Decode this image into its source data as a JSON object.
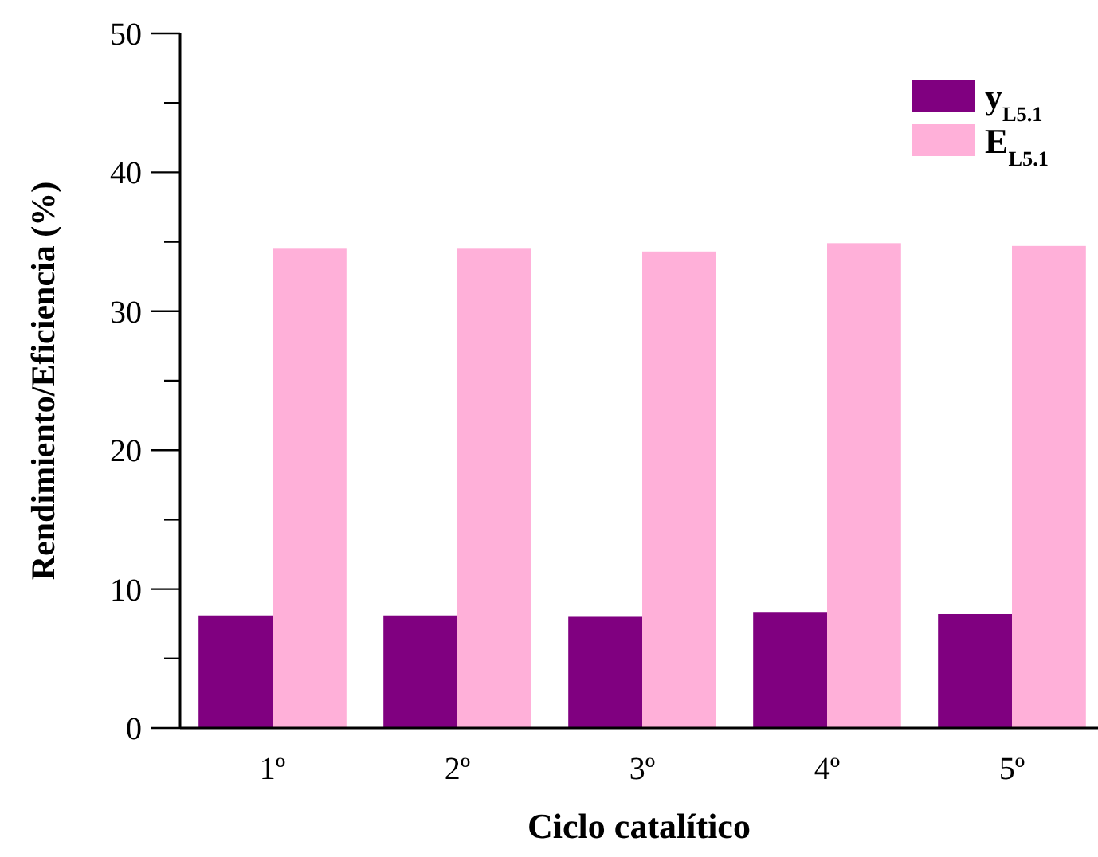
{
  "chart_data": {
    "type": "bar",
    "xlabel": "Ciclo catalítico",
    "ylabel": "Rendimiento/Eficiencia (%)",
    "categories": [
      "1º",
      "2º",
      "3º",
      "4º",
      "5º"
    ],
    "series": [
      {
        "name": "y$_{L5.1}$",
        "color": "#800080",
        "values": [
          8.1,
          8.1,
          8.0,
          8.3,
          8.2
        ]
      },
      {
        "name": "E$_{L5.1}$",
        "color": "#ffb0d9",
        "values": [
          34.5,
          34.5,
          34.3,
          34.9,
          34.7
        ]
      }
    ],
    "ylim": [
      0,
      50
    ],
    "yticks": [
      0,
      {
        "value": 5,
        "label": null
      },
      10,
      {
        "value": 15,
        "label": null
      },
      20,
      {
        "value": 25,
        "label": null
      },
      30,
      {
        "value": 35,
        "label": null
      },
      40,
      {
        "value": 45,
        "label": null
      },
      50
    ],
    "legend": "top right"
  }
}
